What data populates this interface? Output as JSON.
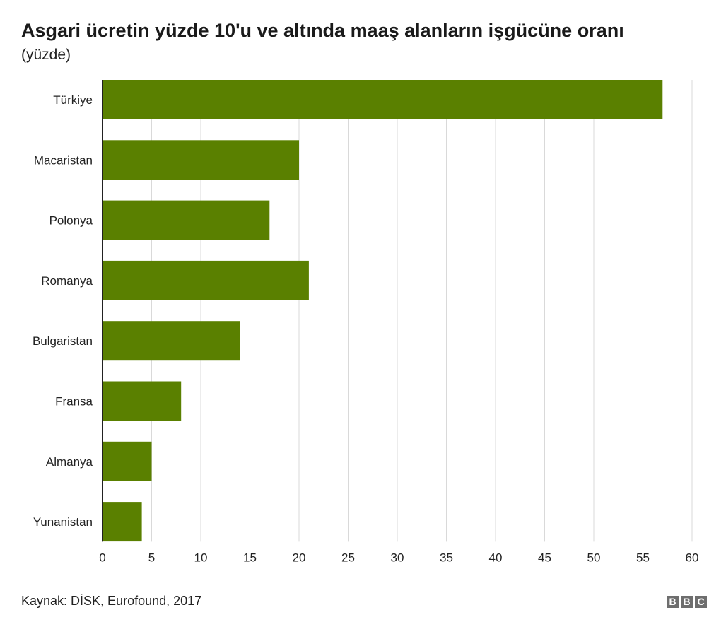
{
  "title": "Asgari ücretin yüzde 10'u ve altında maaş alanların işgücüne oranı",
  "subtitle": "(yüzde)",
  "source": "Kaynak: DİSK, Eurofound, 2017",
  "logo": [
    "B",
    "B",
    "C"
  ],
  "colors": {
    "bar": "#5a8000",
    "grid": "#d9d9d9",
    "axis": "#222222"
  },
  "chart_data": {
    "type": "bar",
    "orientation": "horizontal",
    "categories": [
      "Türkiye",
      "Macaristan",
      "Polonya",
      "Romanya",
      "Bulgaristan",
      "Fransa",
      "Almanya",
      "Yunanistan"
    ],
    "values": [
      57,
      20,
      17,
      21,
      14,
      8,
      5,
      4
    ],
    "xlim": [
      0,
      60
    ],
    "xticks": [
      0,
      5,
      10,
      15,
      20,
      25,
      30,
      35,
      40,
      45,
      50,
      55,
      60
    ],
    "grid": true
  }
}
